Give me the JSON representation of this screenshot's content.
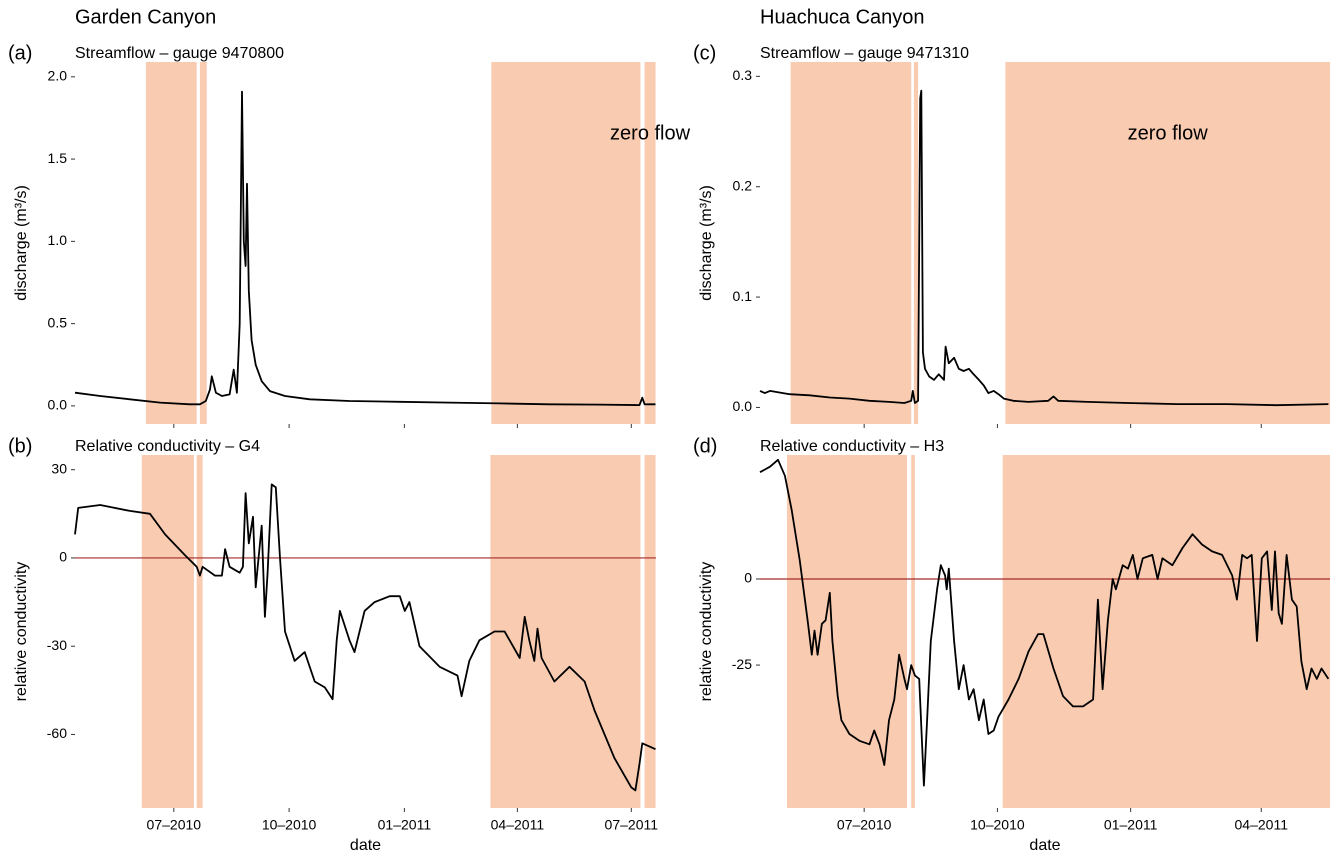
{
  "chart_data": [
    {
      "type": "line",
      "heading": "Garden Canyon",
      "panel": "(a)",
      "title": "Streamflow – gauge 9470800",
      "ylabel": "discharge (m³/s)",
      "color": "#000000",
      "x": [
        2010.28,
        2010.335,
        2010.4,
        2010.466,
        2010.531,
        2010.553,
        2010.566,
        2010.575,
        2010.579,
        2010.588,
        2010.601,
        2010.618,
        2010.627,
        2010.634,
        2010.64,
        2010.645,
        2010.649,
        2010.653,
        2010.656,
        2010.66,
        2010.666,
        2010.675,
        2010.688,
        2010.706,
        2010.739,
        2010.793,
        2010.88,
        2010.99,
        2011.099,
        2011.208,
        2011.317,
        2011.426,
        2011.514,
        2011.52,
        2011.525,
        2011.549
      ],
      "values": [
        0.08,
        0.06,
        0.04,
        0.02,
        0.01,
        0.01,
        0.03,
        0.1,
        0.18,
        0.08,
        0.06,
        0.07,
        0.22,
        0.08,
        0.5,
        1.91,
        1.0,
        0.85,
        1.35,
        0.7,
        0.4,
        0.25,
        0.15,
        0.09,
        0.06,
        0.04,
        0.03,
        0.025,
        0.02,
        0.015,
        0.01,
        0.008,
        0.005,
        0.05,
        0.01,
        0.01
      ],
      "xlim": [
        2010.28,
        2011.55
      ],
      "xticks": [
        2010.496,
        2010.748,
        2011.0,
        2011.247,
        2011.496
      ],
      "xtick_labels": false,
      "ylim": [
        -0.11,
        2.09
      ],
      "yticks": [
        {
          "value": 0,
          "label": "0.0"
        },
        0.5,
        {
          "value": 1,
          "label": "1.0"
        },
        1.5,
        {
          "value": 2,
          "label": "2.0"
        }
      ],
      "shaded_periods": [
        [
          2010.435,
          2010.546
        ],
        [
          2010.553,
          2010.568
        ],
        [
          2011.19,
          2011.516
        ],
        [
          2011.525,
          2011.549
        ]
      ],
      "shade_color": "#f9ccb2",
      "annotation": "zero flow"
    },
    {
      "type": "line",
      "panel": "(b)",
      "title": "Relative conductivity – G4",
      "ylabel": "relative conductivity",
      "xlabel": "date",
      "color": "#000000",
      "x": [
        2010.28,
        2010.287,
        2010.335,
        2010.4,
        2010.444,
        2010.477,
        2010.52,
        2010.546,
        2010.553,
        2010.559,
        2010.586,
        2010.601,
        2010.608,
        2010.618,
        2010.64,
        2010.647,
        2010.653,
        2010.66,
        2010.669,
        2010.675,
        2010.688,
        2010.695,
        2010.701,
        2010.71,
        2010.719,
        2010.728,
        2010.739,
        2010.76,
        2010.782,
        2010.804,
        2010.826,
        2010.843,
        2010.852,
        2010.859,
        2010.88,
        2010.891,
        2010.913,
        2010.935,
        2010.968,
        2010.99,
        2011.001,
        2011.011,
        2011.033,
        2011.077,
        2011.116,
        2011.125,
        2011.142,
        2011.164,
        2011.197,
        2011.219,
        2011.252,
        2011.263,
        2011.273,
        2011.284,
        2011.291,
        2011.3,
        2011.328,
        2011.361,
        2011.394,
        2011.416,
        2011.459,
        2011.496,
        2011.505,
        2011.514,
        2011.52,
        2011.549
      ],
      "values": [
        8,
        17,
        18,
        16,
        15,
        8,
        1,
        -3,
        -6,
        -3,
        -6,
        -6,
        3,
        -3,
        -5,
        -3,
        22,
        5,
        14,
        -10,
        11,
        -20,
        -5,
        25,
        24,
        0,
        -25,
        -35,
        -32,
        -42,
        -44,
        -48,
        -28,
        -18,
        -28,
        -32,
        -18,
        -15,
        -13,
        -13,
        -18,
        -15,
        -30,
        -37,
        -40,
        -47,
        -35,
        -28,
        -25,
        -25,
        -34,
        -20,
        -28,
        -35,
        -24,
        -34,
        -42,
        -37,
        -42,
        -52,
        -68,
        -78,
        -79,
        -70,
        -63,
        -65
      ],
      "xlim": [
        2010.28,
        2011.55
      ],
      "xticks": [
        {
          "value": 2010.496,
          "label": "07–2010"
        },
        {
          "value": 2010.748,
          "label": "10–2010"
        },
        {
          "value": 2011.0,
          "label": "01–2011"
        },
        {
          "value": 2011.247,
          "label": "04–2011"
        },
        {
          "value": 2011.496,
          "label": "07–2011"
        }
      ],
      "xtick_labels": true,
      "ylim": [
        -85,
        35
      ],
      "yticks": [
        -60,
        -30,
        0,
        30
      ],
      "shaded_periods": [
        [
          2010.426,
          2010.54
        ],
        [
          2010.546,
          2010.559
        ],
        [
          2011.188,
          2011.516
        ],
        [
          2011.525,
          2011.549
        ]
      ],
      "shade_color": "#f9ccb2",
      "reference_line": 0,
      "reference_color": "#a52a2a"
    },
    {
      "type": "line",
      "heading": "Huachuca Canyon",
      "panel": "(c)",
      "title": "Streamflow – gauge 9471310",
      "ylabel": "discharge (m³/s)",
      "color": "#000000",
      "x": [
        2010.299,
        2010.308,
        2010.318,
        2010.355,
        2010.393,
        2010.431,
        2010.468,
        2010.506,
        2010.543,
        2010.572,
        2010.585,
        2010.588,
        2010.592,
        2010.598,
        2010.602,
        2010.604,
        2010.607,
        2010.611,
        2010.619,
        2010.628,
        2010.637,
        2010.647,
        2010.65,
        2010.656,
        2010.666,
        2010.675,
        2010.684,
        2010.694,
        2010.703,
        2010.713,
        2010.722,
        2010.731,
        2010.741,
        2010.75,
        2010.76,
        2010.778,
        2010.807,
        2010.844,
        2010.854,
        2010.863,
        2010.919,
        2010.995,
        2011.088,
        2011.182,
        2011.276,
        2011.374
      ],
      "values": [
        0.015,
        0.013,
        0.015,
        0.012,
        0.011,
        0.009,
        0.008,
        0.006,
        0.005,
        0.004,
        0.006,
        0.015,
        0.004,
        0.006,
        0.28,
        0.287,
        0.05,
        0.035,
        0.028,
        0.025,
        0.03,
        0.025,
        0.055,
        0.04,
        0.045,
        0.035,
        0.033,
        0.035,
        0.03,
        0.025,
        0.02,
        0.013,
        0.015,
        0.012,
        0.008,
        0.006,
        0.005,
        0.006,
        0.01,
        0.006,
        0.005,
        0.004,
        0.003,
        0.003,
        0.002,
        0.003
      ],
      "xlim": [
        2010.299,
        2011.377
      ],
      "xticks": [
        2010.496,
        2010.748,
        2011.0,
        2011.247
      ],
      "xtick_labels": false,
      "ylim": [
        -0.015,
        0.313
      ],
      "yticks": [
        {
          "value": 0,
          "label": "0.0"
        },
        0.1,
        0.2,
        0.3
      ],
      "shaded_periods": [
        [
          2010.357,
          2010.585
        ],
        [
          2010.59,
          2010.598
        ],
        [
          2010.763,
          2011.377
        ]
      ],
      "shade_color": "#f9ccb2",
      "annotation": "zero flow"
    },
    {
      "type": "line",
      "panel": "(d)",
      "title": "Relative conductivity – H3",
      "ylabel": "relative conductivity",
      "xlabel": "date",
      "color": "#000000",
      "x": [
        2010.299,
        2010.318,
        2010.333,
        2010.346,
        2010.359,
        2010.374,
        2010.389,
        2010.397,
        2010.402,
        2010.408,
        2010.416,
        2010.423,
        2010.431,
        2010.436,
        2010.446,
        2010.453,
        2010.468,
        2010.487,
        2010.506,
        2010.515,
        2010.525,
        2010.534,
        2010.543,
        2010.553,
        2010.562,
        2010.572,
        2010.577,
        2010.585,
        2010.592,
        2010.6,
        2010.609,
        2010.615,
        2010.622,
        2010.634,
        2010.641,
        2010.649,
        2010.652,
        2010.656,
        2010.666,
        2010.675,
        2010.684,
        2010.694,
        2010.703,
        2010.713,
        2010.722,
        2010.731,
        2010.741,
        2010.75,
        2010.769,
        2010.788,
        2010.807,
        2010.825,
        2010.835,
        2010.854,
        2010.872,
        2010.891,
        2010.91,
        2010.929,
        2010.938,
        2010.947,
        2010.957,
        2010.966,
        2010.972,
        2010.985,
        2010.995,
        2011.004,
        2011.013,
        2011.023,
        2011.041,
        2011.051,
        2011.06,
        2011.079,
        2011.098,
        2011.117,
        2011.135,
        2011.154,
        2011.173,
        2011.192,
        2011.201,
        2011.211,
        2011.22,
        2011.229,
        2011.239,
        2011.248,
        2011.258,
        2011.267,
        2011.273,
        2011.28,
        2011.286,
        2011.295,
        2011.305,
        2011.314,
        2011.323,
        2011.333,
        2011.342,
        2011.352,
        2011.361,
        2011.374
      ],
      "values": [
        31,
        32.6,
        34.6,
        30,
        20,
        5.5,
        -12,
        -22,
        -15,
        -22,
        -13,
        -12,
        -4,
        -18,
        -34,
        -41,
        -45,
        -47,
        -48,
        -44,
        -48,
        -54,
        -41,
        -35,
        -22,
        -29,
        -32,
        -25,
        -28,
        -29,
        -60,
        -41,
        -18,
        -3,
        4,
        1,
        -3,
        3,
        -18,
        -32,
        -25,
        -35,
        -32,
        -41,
        -35,
        -45,
        -44,
        -40,
        -35,
        -29,
        -21,
        -16,
        -16,
        -26,
        -34,
        -37,
        -37,
        -35,
        -6,
        -32,
        -12,
        0,
        -3,
        4,
        3,
        7,
        0,
        6,
        7,
        0,
        6,
        4,
        9,
        13,
        10,
        8,
        7,
        1,
        -6,
        7,
        6,
        7,
        -18,
        6,
        8,
        -9,
        8,
        -10,
        -13,
        7,
        -6,
        -8,
        -24,
        -32,
        -26,
        -29,
        -26,
        -29
      ],
      "xlim": [
        2010.299,
        2011.377
      ],
      "xticks": [
        {
          "value": 2010.496,
          "label": "07–2010"
        },
        {
          "value": 2010.748,
          "label": "10–2010"
        },
        {
          "value": 2011.0,
          "label": "01–2011"
        },
        {
          "value": 2011.247,
          "label": "04–2011"
        }
      ],
      "xtick_labels": true,
      "ylim": [
        -66.5,
        36
      ],
      "yticks": [
        -25,
        0
      ],
      "shaded_periods": [
        [
          2010.35,
          2010.577
        ],
        [
          2010.585,
          2010.592
        ],
        [
          2010.758,
          2011.377
        ]
      ],
      "shade_color": "#f9ccb2",
      "reference_line": 0,
      "reference_color": "#a52a2a"
    }
  ]
}
